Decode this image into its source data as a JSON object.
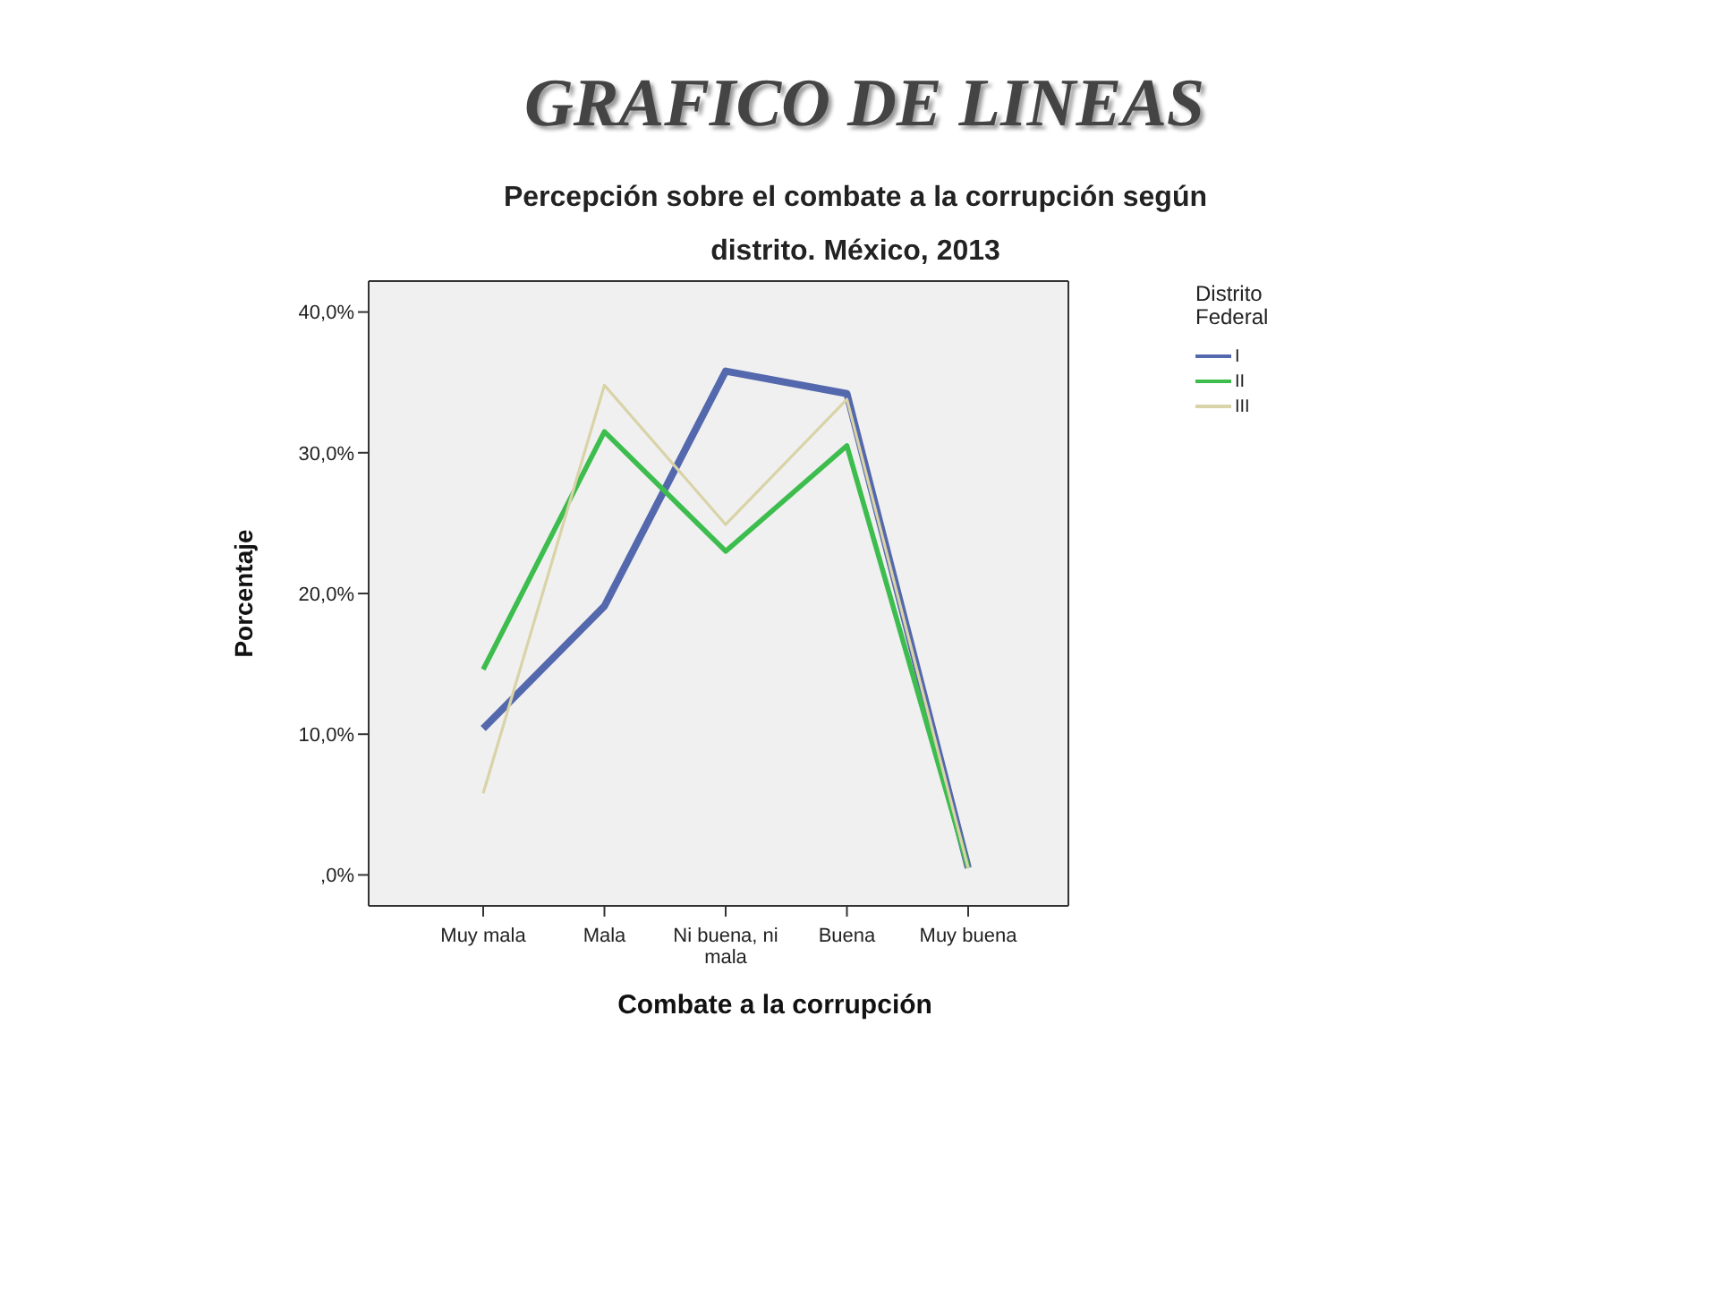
{
  "chart_data": {
    "type": "line",
    "title": "GRAFICO DE LINEAS",
    "subtitle": "Percepción sobre el combate a la corrupción según distrito. México, 2013",
    "xlabel": "Combate a la corrupción",
    "ylabel": "Porcentaje",
    "legend_title": "Distrito Federal",
    "categories": [
      "Muy mala",
      "Mala",
      "Ni buena, ni mala",
      "Buena",
      "Muy buena"
    ],
    "series": [
      {
        "name": "I",
        "color": "#5468ad",
        "values": [
          10.4,
          19.1,
          35.8,
          34.2,
          0.5
        ]
      },
      {
        "name": "II",
        "color": "#3dbd4d",
        "values": [
          14.6,
          31.5,
          23.0,
          30.5,
          0.5
        ]
      },
      {
        "name": "III",
        "color": "#d9d3a8",
        "values": [
          5.8,
          34.8,
          24.9,
          33.8,
          0.5
        ]
      }
    ],
    "ylim": [
      -2.2,
      42.2
    ],
    "yticks": [
      {
        "value": 0,
        "label": ",0%"
      },
      {
        "value": 10,
        "label": "10,0%"
      },
      {
        "value": 20,
        "label": "20,0%"
      },
      {
        "value": 30,
        "label": "30,0%"
      },
      {
        "value": 40,
        "label": "40,0%"
      }
    ],
    "grid": false,
    "legend": "right",
    "marker": "none",
    "line_style": "solid"
  }
}
